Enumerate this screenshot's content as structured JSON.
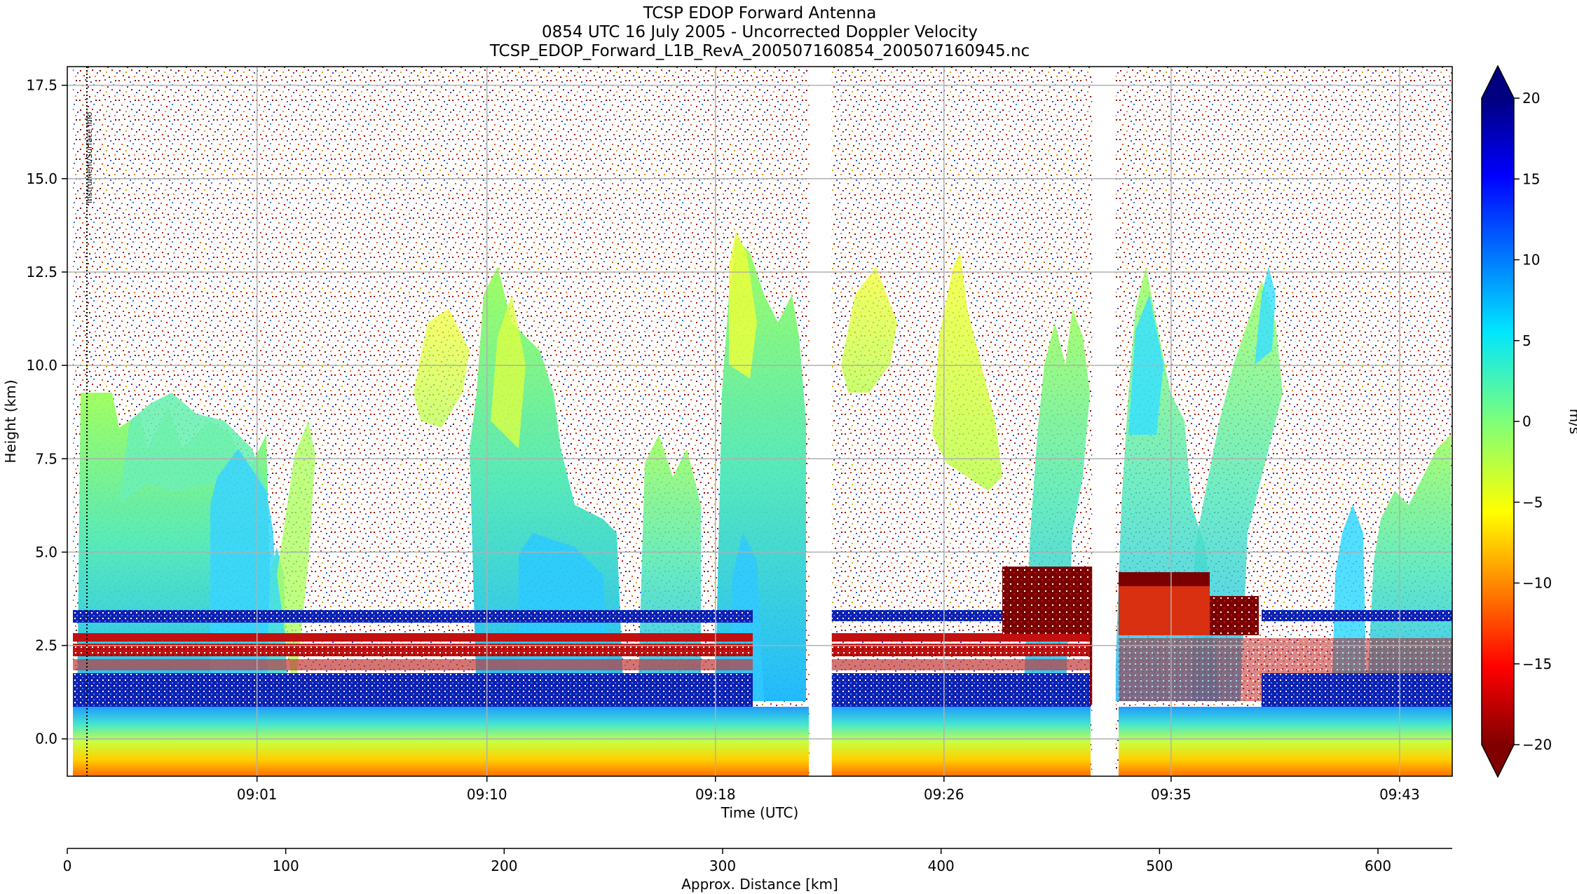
{
  "chart_data": {
    "type": "heatmap",
    "title_lines": [
      "TCSP EDOP Forward Antenna",
      "0854 UTC 16 July 2005 - Uncorrected Doppler Velocity",
      "TCSP_EDOP_Forward_L1B_RevA_200507160854_200507160945.nc"
    ],
    "xlabel": "Time (UTC)",
    "ylabel": "Height (km)",
    "x_ticks": [
      "09:01",
      "09:10",
      "09:18",
      "09:26",
      "09:35",
      "09:43"
    ],
    "x_tick_fractions": [
      0.137,
      0.303,
      0.468,
      0.633,
      0.797,
      0.962
    ],
    "ylim": [
      -1.0,
      18.0
    ],
    "y_ticks": [
      0.0,
      2.5,
      5.0,
      7.5,
      10.0,
      12.5,
      15.0,
      17.5
    ],
    "y_tick_labels": [
      "0.0",
      "2.5",
      "5.0",
      "7.5",
      "10.0",
      "12.5",
      "15.0",
      "17.5"
    ],
    "grid": true,
    "data_gaps_fraction": [
      [
        0.536,
        0.552
      ],
      [
        0.74,
        0.757
      ]
    ],
    "secondary_axis": {
      "label": "Approx. Distance [km]",
      "range": [
        0,
        634
      ],
      "ticks": [
        0,
        100,
        200,
        300,
        400,
        500,
        600
      ]
    },
    "colorbar": {
      "label": "m/s",
      "range": [
        -20,
        20
      ],
      "ticks": [
        -20,
        -15,
        -10,
        -5,
        0,
        5,
        10,
        15,
        20
      ],
      "tick_labels": [
        "−20",
        "−15",
        "−10",
        "−5",
        "0",
        "5",
        "10",
        "15",
        "20"
      ],
      "extend": "both",
      "colormap": "jet_reversed"
    },
    "vertical_annotation": "Instrument/Surface Info"
  }
}
